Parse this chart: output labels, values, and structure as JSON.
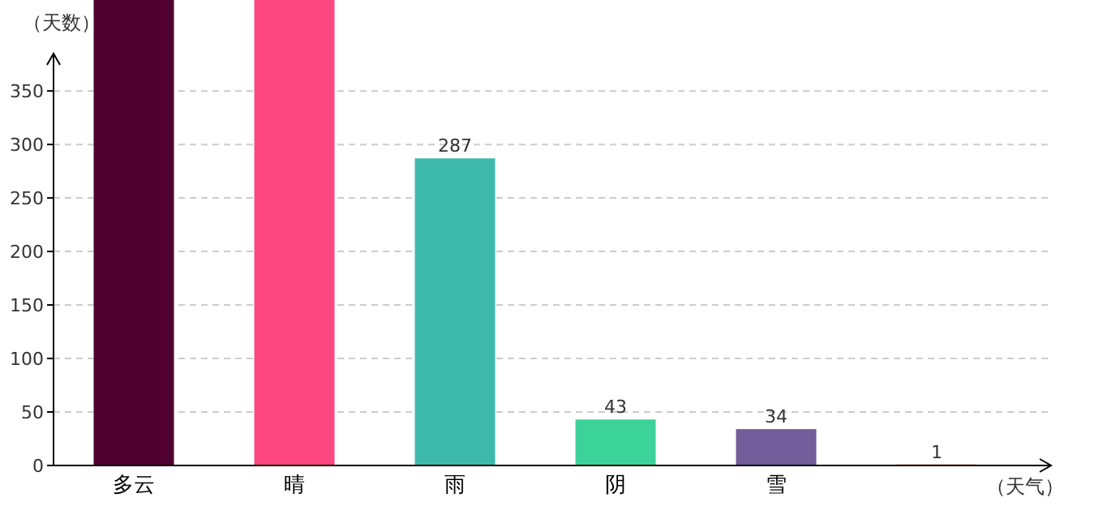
{
  "chart_data": {
    "type": "bar",
    "xlabel": "（天气）",
    "ylabel": "（天数）",
    "categories": [
      "多云",
      "晴",
      "雨",
      "阴",
      "雪",
      null
    ],
    "values": [
      435,
      435,
      287,
      43,
      34,
      1
    ],
    "value_labels": [
      null,
      null,
      "287",
      "43",
      "34",
      "1"
    ],
    "colors": [
      "#4f002e",
      "#fd4780",
      "#3db9ab",
      "#3bd39a",
      "#735d9b",
      "#e07b39"
    ],
    "ylim": [
      0,
      435
    ],
    "yticks": [
      0,
      50,
      100,
      150,
      200,
      250,
      300,
      350
    ],
    "grid": "y"
  }
}
